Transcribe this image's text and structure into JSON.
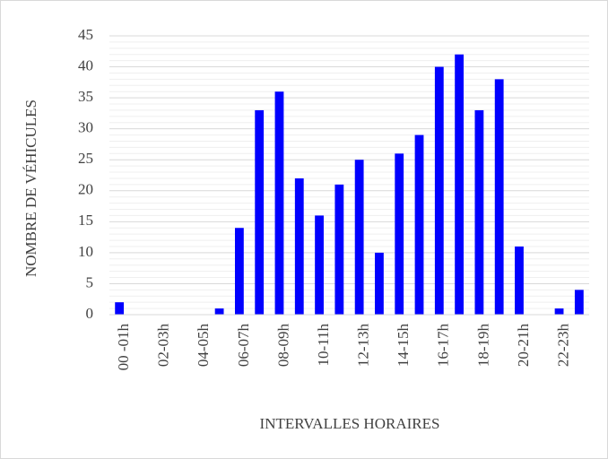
{
  "chart_data": {
    "type": "bar",
    "x_label": "INTERVALLES HORAIRES",
    "y_label": "NOMBRE DE VÉHICULES",
    "categories": [
      "00 -01h",
      null,
      "02-03h",
      null,
      "04-05h",
      null,
      "06-07h",
      null,
      "08-09h",
      null,
      "10-11h",
      null,
      "12-13h",
      null,
      "14-15h",
      null,
      "16-17h",
      null,
      "18-19h",
      null,
      "20-21h",
      null,
      "22-23h",
      null
    ],
    "values": [
      2,
      0,
      0,
      0,
      0,
      1,
      14,
      33,
      36,
      22,
      16,
      21,
      25,
      10,
      26,
      29,
      40,
      42,
      33,
      38,
      11,
      0,
      1,
      4
    ],
    "color": "#0000ff",
    "ylim": [
      0,
      45
    ],
    "yticks": [
      0,
      5,
      10,
      15,
      20,
      25,
      30,
      35,
      40,
      45
    ],
    "minor_yticks": [
      1,
      2,
      3,
      4,
      6,
      7,
      8,
      9,
      11,
      12,
      13,
      14,
      16,
      17,
      18,
      19,
      21,
      22,
      23,
      24,
      26,
      27,
      28,
      29,
      31,
      32,
      33,
      34,
      36,
      37,
      38,
      39,
      41,
      42,
      43,
      44
    ],
    "grid": true
  }
}
